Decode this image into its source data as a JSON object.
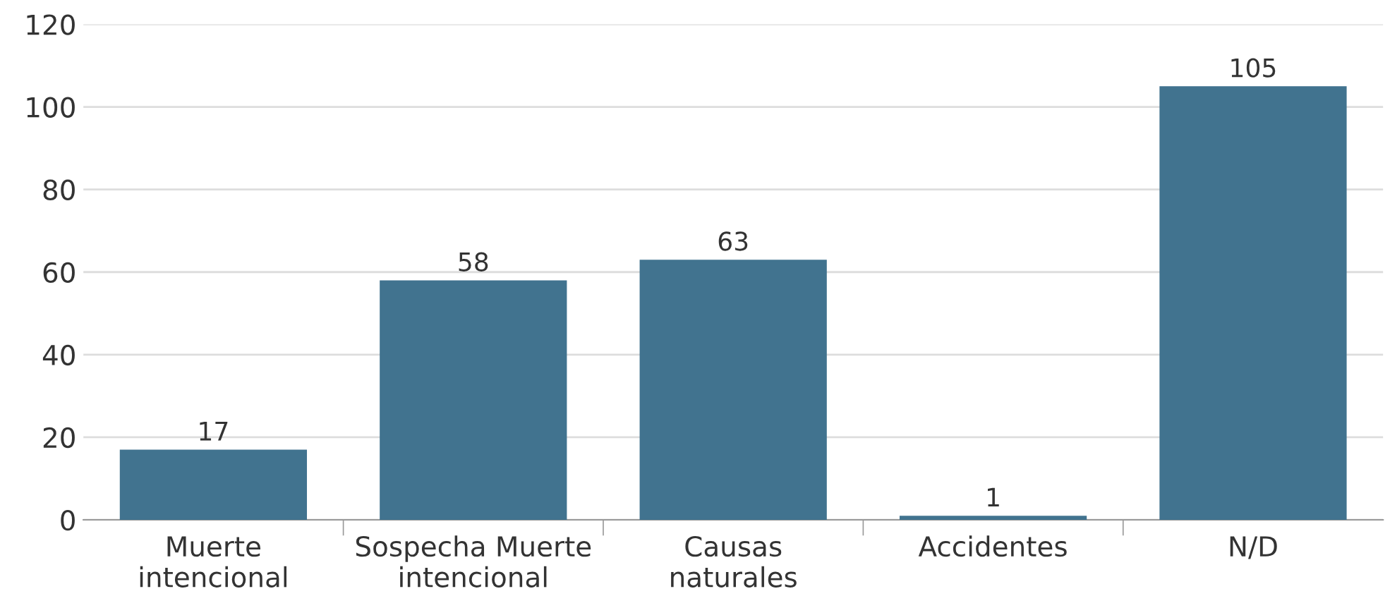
{
  "chart_data": {
    "type": "bar",
    "categories": [
      "Muerte\nintencional",
      "Sospecha Muerte\nintencional",
      "Causas\nnaturales",
      "Accidentes",
      "N/D"
    ],
    "values": [
      17,
      58,
      63,
      1,
      105
    ],
    "color": "#41738f",
    "ylim": [
      0,
      120
    ],
    "yticks": [
      0,
      20,
      40,
      60,
      80,
      100,
      120
    ],
    "grid": "y",
    "data_labels": true
  }
}
